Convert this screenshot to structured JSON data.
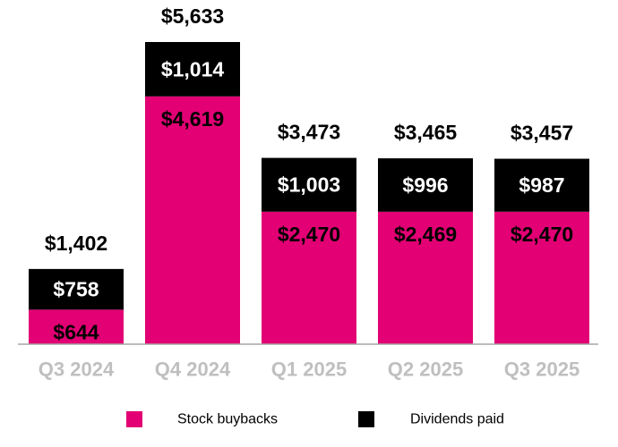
{
  "chart_data": {
    "type": "bar",
    "stacked": true,
    "categories": [
      "Q3 2024",
      "Q4 2024",
      "Q1 2025",
      "Q2 2025",
      "Q3 2025"
    ],
    "series": [
      {
        "name": "Stock buybacks",
        "color": "#E20074",
        "values": [
          644,
          4619,
          2470,
          2469,
          2470
        ],
        "labels": [
          "$644",
          "$4,619",
          "$2,470",
          "$2,469",
          "$2,470"
        ]
      },
      {
        "name": "Dividends paid",
        "color": "#000000",
        "values": [
          758,
          1014,
          1003,
          996,
          987
        ],
        "labels": [
          "$758",
          "$1,014",
          "$1,003",
          "$996",
          "$987"
        ]
      }
    ],
    "totals": [
      1402,
      5633,
      3473,
      3465,
      3457
    ],
    "total_labels": [
      "$1,402",
      "$5,633",
      "$3,473",
      "$3,465",
      "$3,457"
    ],
    "title": "",
    "xlabel": "",
    "ylabel": "",
    "ylim": [
      0,
      5633
    ],
    "grid": false,
    "legend_position": "bottom"
  }
}
